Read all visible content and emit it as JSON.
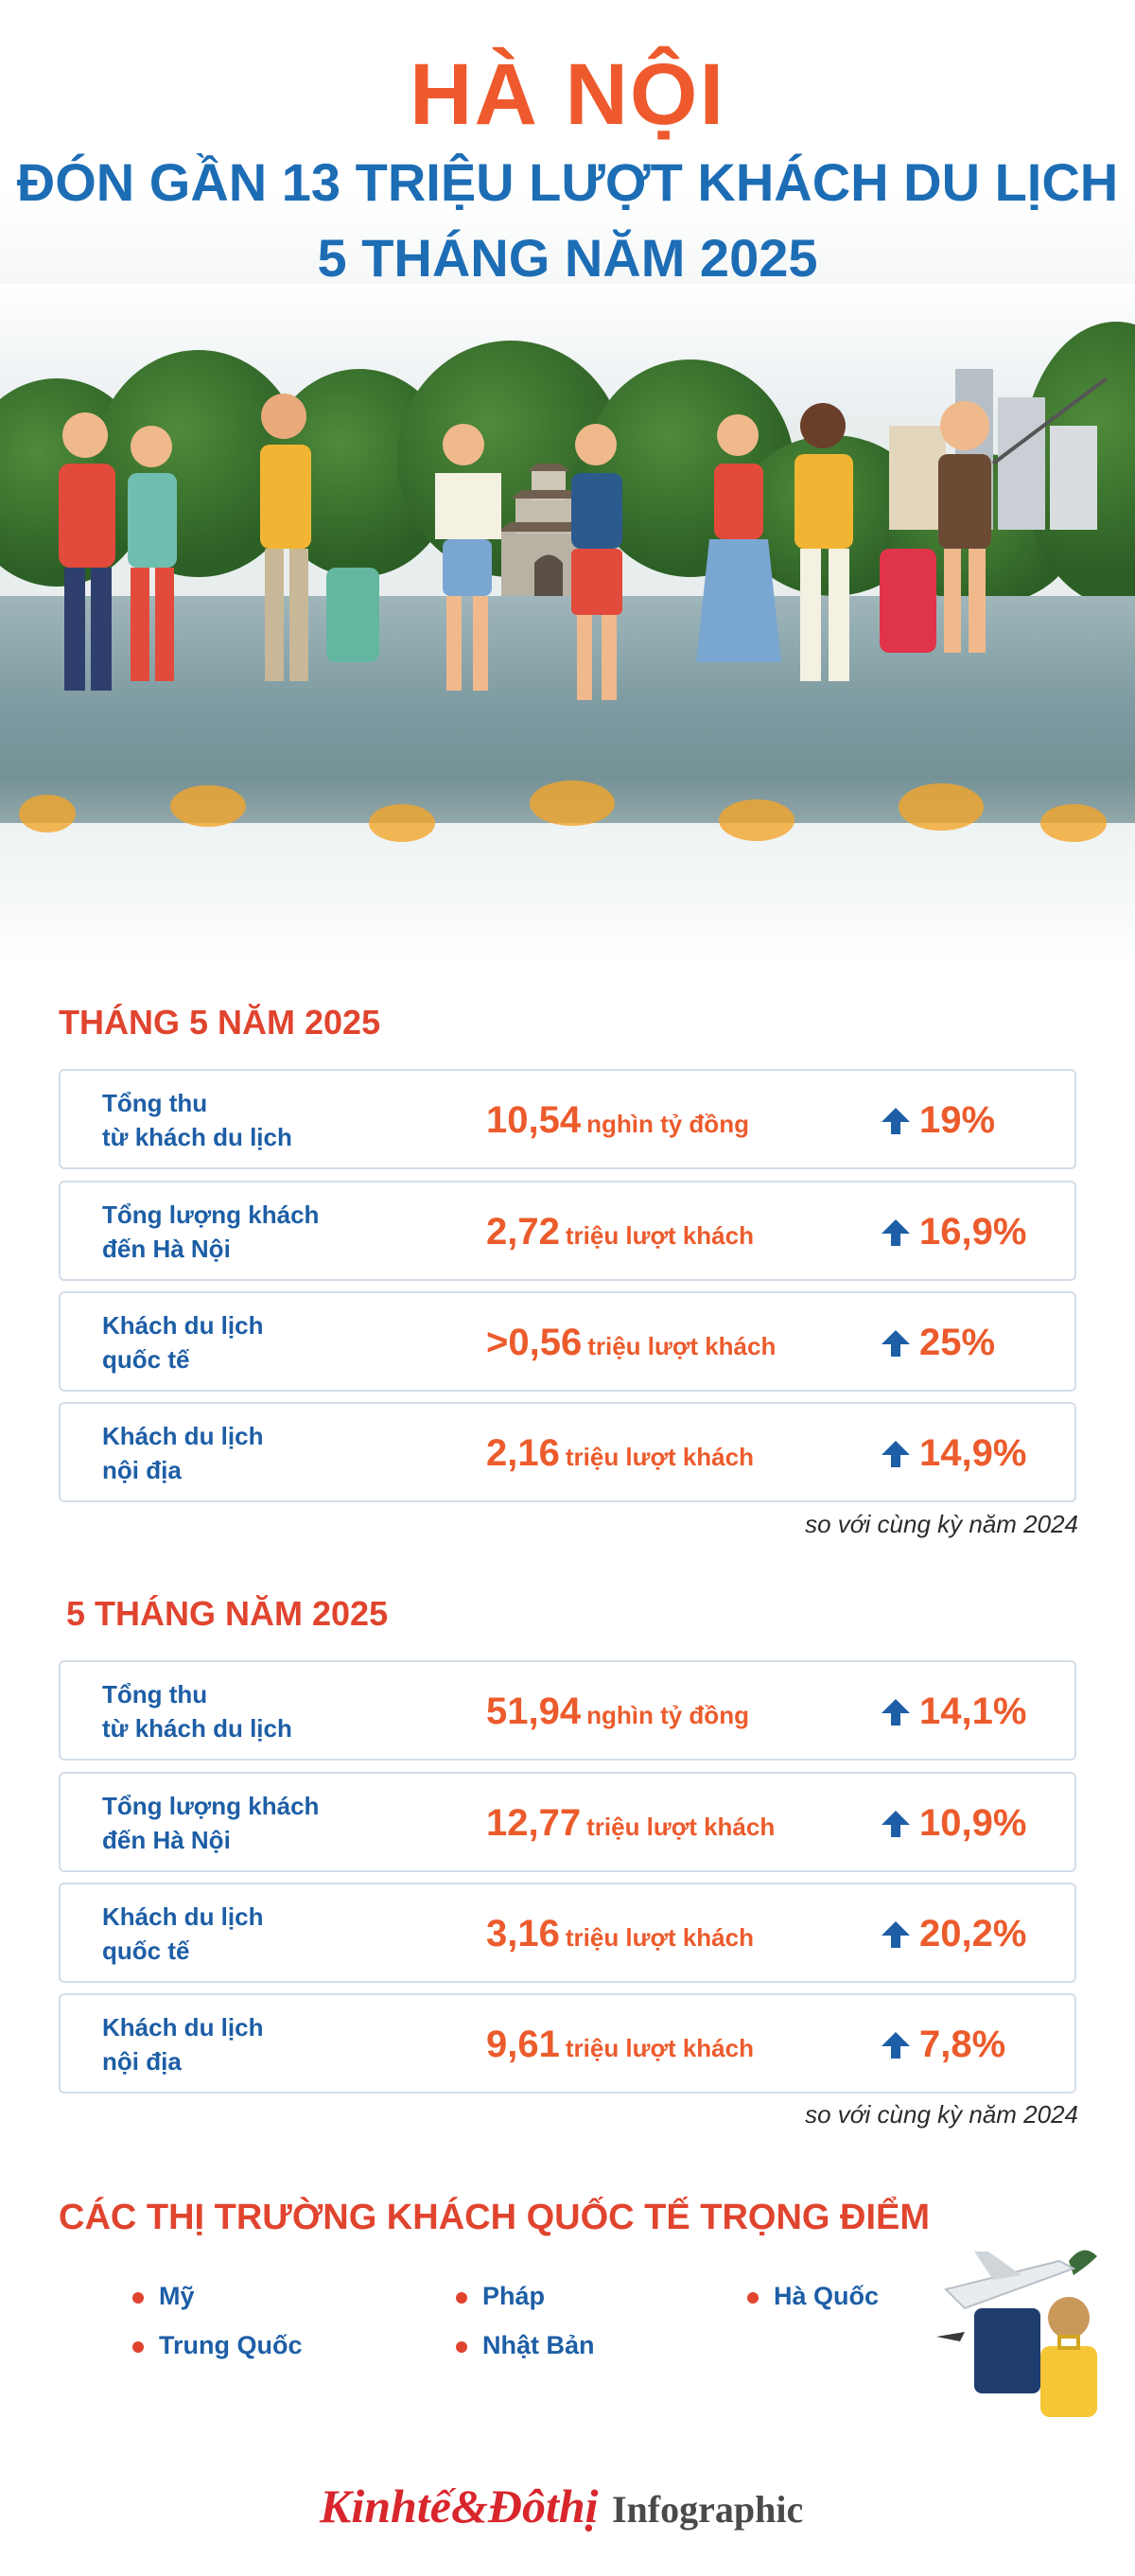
{
  "header": {
    "title": "HÀ NỘI",
    "subtitle_line1": "ĐÓN GẦN 13 TRIỆU LƯỢT KHÁCH DU LỊCH",
    "subtitle_line2": "5 THÁNG NĂM 2025"
  },
  "month5": {
    "title": "THÁNG 5 NĂM 2025",
    "rows": [
      {
        "label1": "Tổng thu",
        "label2": "từ khách du lịch",
        "value": "10,54",
        "unit": "nghìn tỷ đồng",
        "change": "19%"
      },
      {
        "label1": "Tổng lượng khách",
        "label2": "đến Hà Nội",
        "value": "2,72",
        "unit": "triệu lượt khách",
        "change": "16,9%"
      },
      {
        "label1": "Khách du lịch",
        "label2": "quốc tế",
        "value": ">0,56",
        "unit": "triệu lượt khách",
        "change": "25%"
      },
      {
        "label1": "Khách du lịch",
        "label2": "nội địa",
        "value": "2,16",
        "unit": "triệu lượt khách",
        "change": "14,9%"
      }
    ],
    "note": "so với cùng kỳ năm 2024"
  },
  "five_months": {
    "title": "5 THÁNG NĂM 2025",
    "rows": [
      {
        "label1": "Tổng thu",
        "label2": "từ khách du lịch",
        "value": "51,94",
        "unit": "nghìn tỷ đồng",
        "change": "14,1%"
      },
      {
        "label1": "Tổng lượng khách",
        "label2": "đến Hà Nội",
        "value": "12,77",
        "unit": "triệu lượt khách",
        "change": "10,9%"
      },
      {
        "label1": "Khách du lịch",
        "label2": "quốc tế",
        "value": "3,16",
        "unit": "triệu lượt khách",
        "change": "20,2%"
      },
      {
        "label1": "Khách du lịch",
        "label2": "nội địa",
        "value": "9,61",
        "unit": "triệu lượt khách",
        "change": "7,8%"
      }
    ],
    "note": "so với cùng kỳ năm 2024"
  },
  "markets": {
    "title": "CÁC THỊ TRƯỜNG KHÁCH QUỐC TẾ TRỌNG ĐIỂM",
    "items": [
      "Mỹ",
      "Pháp",
      "Hà Quốc",
      "Trung Quốc",
      "Nhật Bản"
    ]
  },
  "footer": {
    "brand": "Kinhtế&Đôthị",
    "label": "Infographic"
  },
  "colors": {
    "accent_orange": "#ee5a2d",
    "title_blue": "#1d6db5",
    "section_red": "#e0442e",
    "arrow_blue": "#1d5ea6"
  },
  "icons": {
    "up_arrow": "up-arrow-icon",
    "bullet": "bullet-dot-icon"
  }
}
